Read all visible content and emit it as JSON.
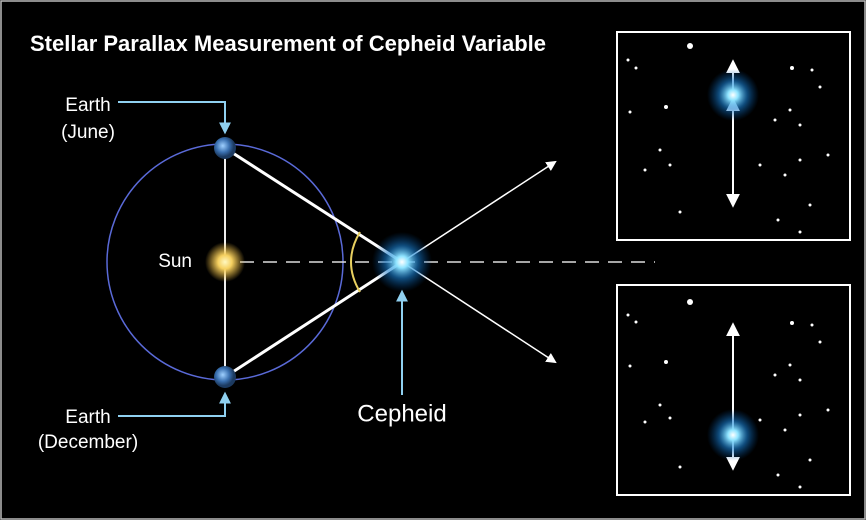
{
  "title": "Stellar Parallax Measurement of Cepheid Variable",
  "labels": {
    "earth_june": [
      "Earth",
      "(June)"
    ],
    "sun": "Sun",
    "earth_december": [
      "Earth",
      "(December)"
    ],
    "cepheid": "Cepheid"
  }
}
